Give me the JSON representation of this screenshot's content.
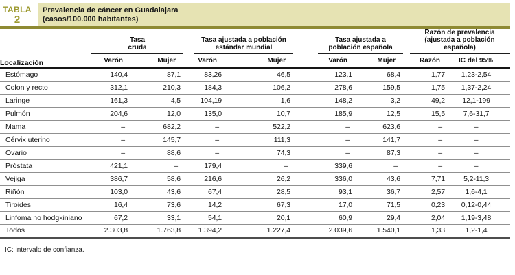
{
  "badge": {
    "label": "TABLA",
    "number": "2"
  },
  "title": {
    "line1": "Prevalencia de cáncer en Guadalajara",
    "line2": "(casos/100.000 habitantes)"
  },
  "columns": {
    "localizacion": "Localización",
    "groups": [
      {
        "line1": "Tasa",
        "line2": "cruda"
      },
      {
        "line1": "Tasa ajustada a población",
        "line2": "estándar mundial"
      },
      {
        "line1": "Tasa ajustada a",
        "line2": "población española"
      },
      {
        "line1": "Razón de prevalencia",
        "line2": "(ajustada a población española)"
      }
    ],
    "subheaders": [
      "Varón",
      "Mujer",
      "Varón",
      "Mujer",
      "Varón",
      "Mujer",
      "Razón",
      "IC del 95%"
    ]
  },
  "rows": [
    {
      "label": "Estómago",
      "values": [
        "140,4",
        "87,1",
        "83,26",
        "46,5",
        "123,1",
        "68,4",
        "1,77",
        "1,23-2,54"
      ]
    },
    {
      "label": "Colon y recto",
      "values": [
        "312,1",
        "210,3",
        "184,3",
        "106,2",
        "278,6",
        "159,5",
        "1,75",
        "1,37-2,24"
      ]
    },
    {
      "label": "Laringe",
      "values": [
        "161,3",
        "4,5",
        "104,19",
        "1,6",
        "148,2",
        "3,2",
        "49,2",
        "12,1-199"
      ]
    },
    {
      "label": "Pulmón",
      "values": [
        "204,6",
        "12,0",
        "135,0",
        "10,7",
        "185,9",
        "12,5",
        "15,5",
        "7,6-31,7"
      ]
    },
    {
      "label": "Mama",
      "values": [
        "–",
        "682,2",
        "–",
        "522,2",
        "–",
        "623,6",
        "–",
        "–"
      ]
    },
    {
      "label": "Cérvix uterino",
      "values": [
        "–",
        "145,7",
        "–",
        "111,3",
        "–",
        "141,7",
        "–",
        "–"
      ]
    },
    {
      "label": "Ovario",
      "values": [
        "–",
        "88,6",
        "–",
        "74,3",
        "–",
        "87,3",
        "–",
        "–"
      ]
    },
    {
      "label": "Próstata",
      "values": [
        "421,1",
        "–",
        "179,4",
        "–",
        "339,6",
        "–",
        "–",
        "–"
      ]
    },
    {
      "label": "Vejiga",
      "values": [
        "386,7",
        "58,6",
        "216,6",
        "26,2",
        "336,0",
        "43,6",
        "7,71",
        "5,2-11,3"
      ]
    },
    {
      "label": "Riñón",
      "values": [
        "103,0",
        "43,6",
        "67,4",
        "28,5",
        "93,1",
        "36,7",
        "2,57",
        "1,6-4,1"
      ]
    },
    {
      "label": "Tiroides",
      "values": [
        "16,4",
        "73,6",
        "14,2",
        "67,3",
        "17,0",
        "71,5",
        "0,23",
        "0,12-0,44"
      ]
    },
    {
      "label": "Linfoma no hodgkiniano",
      "values": [
        "67,2",
        "33,1",
        "54,1",
        "20,1",
        "60,9",
        "29,4",
        "2,04",
        "1,19-3,48"
      ]
    },
    {
      "label": "Todos",
      "values": [
        "2.303,8",
        "1.763,8",
        "1.394,2",
        "1.227,4",
        "2.039,6",
        "1.540,1",
        "1,33",
        "1,2-1,4"
      ]
    }
  ],
  "footnote": "IC: intervalo de confianza.",
  "colors": {
    "accent_olive": "#9c992e",
    "header_band": "#e6e3b3",
    "band_rule": "#8e8a33",
    "row_rule": "#909090",
    "header_rule": "#151515",
    "bottom_rule": "#4d4d4d"
  }
}
